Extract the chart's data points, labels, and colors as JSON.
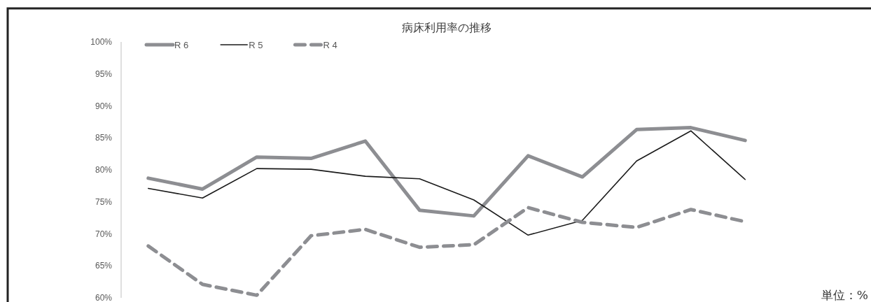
{
  "chart_data": {
    "type": "line",
    "title": "病床利用率の推移",
    "categories": [
      null,
      null,
      null,
      null,
      null,
      null,
      null,
      null,
      null,
      null,
      null,
      null
    ],
    "series": [
      {
        "name": "R 6",
        "color": "#8d8e92",
        "line_style": "solid",
        "values": [
          78.7,
          77.0,
          82.0,
          81.8,
          84.5,
          73.7,
          72.8,
          82.2,
          78.9,
          86.3,
          86.6,
          84.6
        ]
      },
      {
        "name": "R 5",
        "color": "#1a1a1a",
        "line_style": "solid",
        "values": [
          77.1,
          75.6,
          80.2,
          80.1,
          79.0,
          78.6,
          75.3,
          69.8,
          72.1,
          81.4,
          86.1,
          78.5
        ]
      },
      {
        "name": "R 4",
        "color": "#8d8e92",
        "line_style": "dashed",
        "values": [
          68.1,
          62.1,
          60.4,
          69.7,
          70.7,
          67.9,
          68.3,
          74.1,
          71.8,
          71.0,
          73.8,
          71.9
        ]
      }
    ],
    "ylim": [
      60,
      100
    ],
    "yticks": [
      {
        "value": 60,
        "label": "60%"
      },
      {
        "value": 65,
        "label": "65%"
      },
      {
        "value": 70,
        "label": "70%"
      },
      {
        "value": 75,
        "label": "75%"
      },
      {
        "value": 80,
        "label": "80%"
      },
      {
        "value": 85,
        "label": "85%"
      },
      {
        "value": 90,
        "label": "90%"
      },
      {
        "value": 95,
        "label": "95%"
      },
      {
        "value": 100,
        "label": "100%"
      }
    ],
    "tick_labels": "y",
    "legend": "top left",
    "annotations": [
      "単位：%"
    ]
  }
}
